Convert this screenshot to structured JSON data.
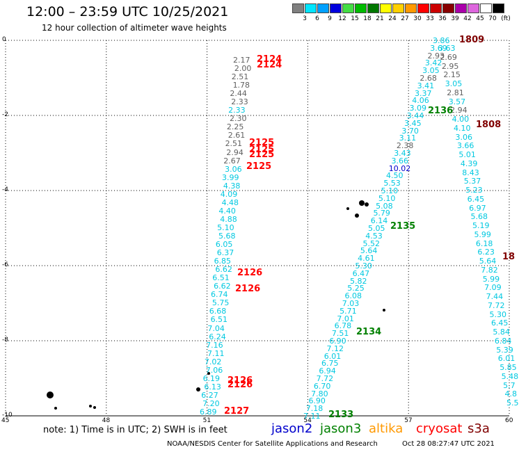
{
  "header": {
    "title": "12:00 – 23:59 UTC 10/25/2021",
    "subtitle": "12 hour collection of altimeter wave heights"
  },
  "color_scale": {
    "unit": "(ft)",
    "levels": [
      {
        "label": "3",
        "color": "#808080"
      },
      {
        "label": "6",
        "color": "#00e5ff"
      },
      {
        "label": "9",
        "color": "#00a0ff"
      },
      {
        "label": "12",
        "color": "#0000dd"
      },
      {
        "label": "15",
        "color": "#44dd44"
      },
      {
        "label": "18",
        "color": "#00bb00"
      },
      {
        "label": "21",
        "color": "#007700"
      },
      {
        "label": "24",
        "color": "#ffff00"
      },
      {
        "label": "27",
        "color": "#ffd000"
      },
      {
        "label": "30",
        "color": "#ff9900"
      },
      {
        "label": "33",
        "color": "#ff0000"
      },
      {
        "label": "36",
        "color": "#cc0000"
      },
      {
        "label": "39",
        "color": "#880000"
      },
      {
        "label": "42",
        "color": "#aa00aa"
      },
      {
        "label": "45",
        "color": "#dd66dd"
      },
      {
        "label": "70",
        "color": "#ffffff"
      },
      {
        "label": "",
        "color": "#000000"
      }
    ]
  },
  "axes": {
    "lat_labels": [
      "0",
      "-2",
      "-4",
      "-6",
      "-8",
      "-10"
    ],
    "lon_labels": [
      "45",
      "48",
      "51",
      "54",
      "57",
      "60"
    ]
  },
  "passes": [
    {
      "label": "2124",
      "color": "#ff0000"
    },
    {
      "label": "2124",
      "color": "#ff0000"
    },
    {
      "label": "2125",
      "color": "#ff0000"
    },
    {
      "label": "2125",
      "color": "#ff0000"
    },
    {
      "label": "2125",
      "color": "#ff0000"
    },
    {
      "label": "2125",
      "color": "#ff0000"
    },
    {
      "label": "2126",
      "color": "#ff0000"
    },
    {
      "label": "2126",
      "color": "#ff0000"
    },
    {
      "label": "2126",
      "color": "#ff0000"
    },
    {
      "label": "2126",
      "color": "#ff0000"
    },
    {
      "label": "2127",
      "color": "#ff0000"
    },
    {
      "label": "1809",
      "color": "#800000"
    },
    {
      "label": "1808",
      "color": "#800000"
    },
    {
      "label": "18",
      "color": "#800000"
    },
    {
      "label": "2136",
      "color": "#008000"
    },
    {
      "label": "2135",
      "color": "#008000"
    },
    {
      "label": "2134",
      "color": "#008000"
    },
    {
      "label": "2133",
      "color": "#008000"
    }
  ],
  "tracks": {
    "track_51": [
      {
        "v": "2.17",
        "c": "#606060"
      },
      {
        "v": "2.00",
        "c": "#606060"
      },
      {
        "v": "2.51",
        "c": "#606060"
      },
      {
        "v": "1.78",
        "c": "#606060"
      },
      {
        "v": "2.44",
        "c": "#606060"
      },
      {
        "v": "2.33",
        "c": "#606060"
      },
      {
        "v": "2.33",
        "c": "#00c8e0"
      },
      {
        "v": "2.30",
        "c": "#606060"
      },
      {
        "v": "2.25",
        "c": "#606060"
      },
      {
        "v": "2.61",
        "c": "#606060"
      },
      {
        "v": "2.51",
        "c": "#606060"
      },
      {
        "v": "2.94",
        "c": "#606060"
      },
      {
        "v": "2.67",
        "c": "#606060"
      },
      {
        "v": "3.06",
        "c": "#00c8e0"
      },
      {
        "v": "3.99",
        "c": "#00c8e0"
      },
      {
        "v": "4.38",
        "c": "#00c8e0"
      },
      {
        "v": "4.09",
        "c": "#00c8e0"
      },
      {
        "v": "4.48",
        "c": "#00c8e0"
      },
      {
        "v": "4.40",
        "c": "#00c8e0"
      },
      {
        "v": "4.88",
        "c": "#00c8e0"
      },
      {
        "v": "5.10",
        "c": "#00c8e0"
      },
      {
        "v": "5.68",
        "c": "#00c8e0"
      },
      {
        "v": "6.05",
        "c": "#00c8e0"
      },
      {
        "v": "6.37",
        "c": "#00c8e0"
      },
      {
        "v": "6.85",
        "c": "#00c8e0"
      },
      {
        "v": "6.62",
        "c": "#00c8e0"
      },
      {
        "v": "6.51",
        "c": "#00c8e0"
      },
      {
        "v": "6.62",
        "c": "#00c8e0"
      },
      {
        "v": "6.74",
        "c": "#00c8e0"
      },
      {
        "v": "5.75",
        "c": "#00c8e0"
      },
      {
        "v": "6.68",
        "c": "#00c8e0"
      },
      {
        "v": "6.51",
        "c": "#00c8e0"
      },
      {
        "v": "7.04",
        "c": "#00c8e0"
      },
      {
        "v": "6.24",
        "c": "#00c8e0"
      },
      {
        "v": "7.16",
        "c": "#00c8e0"
      },
      {
        "v": "7.11",
        "c": "#00c8e0"
      },
      {
        "v": "7.02",
        "c": "#00c8e0"
      },
      {
        "v": "7.06",
        "c": "#00c8e0"
      },
      {
        "v": "6.19",
        "c": "#00c8e0"
      },
      {
        "v": "6.13",
        "c": "#00c8e0"
      },
      {
        "v": "6.27",
        "c": "#00c8e0"
      },
      {
        "v": "7.20",
        "c": "#00c8e0"
      },
      {
        "v": "6.89",
        "c": "#00c8e0"
      }
    ],
    "track_2136": [
      {
        "v": "3.86",
        "c": "#00c8e0"
      },
      {
        "v": "3.69",
        "c": "#00c8e0"
      },
      {
        "v": "2.93",
        "c": "#606060"
      },
      {
        "v": "3.42",
        "c": "#00c8e0"
      },
      {
        "v": "3.05",
        "c": "#00c8e0"
      },
      {
        "v": "2.68",
        "c": "#606060"
      },
      {
        "v": "3.41",
        "c": "#00c8e0"
      },
      {
        "v": "3.37",
        "c": "#00c8e0"
      },
      {
        "v": "4.06",
        "c": "#00c8e0"
      },
      {
        "v": "3.09",
        "c": "#00c8e0"
      },
      {
        "v": "3.44",
        "c": "#00c8e0"
      },
      {
        "v": "3.45",
        "c": "#00c8e0"
      },
      {
        "v": "3.70",
        "c": "#00c8e0"
      },
      {
        "v": "3.11",
        "c": "#00c8e0"
      },
      {
        "v": "2.38",
        "c": "#606060"
      },
      {
        "v": "3.43",
        "c": "#00c8e0"
      },
      {
        "v": "3.66",
        "c": "#00c8e0"
      },
      {
        "v": "10.02",
        "c": "#0000cc"
      },
      {
        "v": "4.50",
        "c": "#00c8e0"
      },
      {
        "v": "5.53",
        "c": "#00c8e0"
      },
      {
        "v": "5.10",
        "c": "#00c8e0"
      },
      {
        "v": "5.10",
        "c": "#00c8e0"
      },
      {
        "v": "5.08",
        "c": "#00c8e0"
      },
      {
        "v": "5.79",
        "c": "#00c8e0"
      },
      {
        "v": "6.14",
        "c": "#00c8e0"
      },
      {
        "v": "5.05",
        "c": "#00c8e0"
      },
      {
        "v": "4.53",
        "c": "#00c8e0"
      },
      {
        "v": "5.52",
        "c": "#00c8e0"
      },
      {
        "v": "5.64",
        "c": "#00c8e0"
      },
      {
        "v": "4.61",
        "c": "#00c8e0"
      },
      {
        "v": "5.30",
        "c": "#00c8e0"
      },
      {
        "v": "6.47",
        "c": "#00c8e0"
      },
      {
        "v": "5.82",
        "c": "#00c8e0"
      },
      {
        "v": "5.25",
        "c": "#00c8e0"
      },
      {
        "v": "6.08",
        "c": "#00c8e0"
      },
      {
        "v": "7.03",
        "c": "#00c8e0"
      },
      {
        "v": "5.71",
        "c": "#00c8e0"
      },
      {
        "v": "7.01",
        "c": "#00c8e0"
      },
      {
        "v": "6.78",
        "c": "#00c8e0"
      },
      {
        "v": "7.51",
        "c": "#00c8e0"
      },
      {
        "v": "6.90",
        "c": "#00c8e0"
      },
      {
        "v": "7.12",
        "c": "#00c8e0"
      },
      {
        "v": "6.01",
        "c": "#00c8e0"
      },
      {
        "v": "6.75",
        "c": "#00c8e0"
      },
      {
        "v": "6.94",
        "c": "#00c8e0"
      },
      {
        "v": "7.72",
        "c": "#00c8e0"
      },
      {
        "v": "6.70",
        "c": "#00c8e0"
      },
      {
        "v": "7.80",
        "c": "#00c8e0"
      },
      {
        "v": "6.90",
        "c": "#00c8e0"
      },
      {
        "v": "7.18",
        "c": "#00c8e0"
      },
      {
        "v": "7.11",
        "c": "#00c8e0"
      }
    ],
    "track_1808": [
      {
        "v": "3.63",
        "c": "#00c8e0"
      },
      {
        "v": "2.69",
        "c": "#606060"
      },
      {
        "v": "2.95",
        "c": "#606060"
      },
      {
        "v": "2.15",
        "c": "#606060"
      },
      {
        "v": "3.05",
        "c": "#00c8e0"
      },
      {
        "v": "2.81",
        "c": "#606060"
      },
      {
        "v": "3.57",
        "c": "#00c8e0"
      },
      {
        "v": "2.94",
        "c": "#606060"
      },
      {
        "v": "4.00",
        "c": "#00c8e0"
      },
      {
        "v": "4.10",
        "c": "#00c8e0"
      },
      {
        "v": "3.06",
        "c": "#00c8e0"
      },
      {
        "v": "3.66",
        "c": "#00c8e0"
      },
      {
        "v": "5.01",
        "c": "#00c8e0"
      },
      {
        "v": "4.39",
        "c": "#00c8e0"
      },
      {
        "v": "8.43",
        "c": "#00c8e0"
      },
      {
        "v": "5.37",
        "c": "#00c8e0"
      },
      {
        "v": "5.23",
        "c": "#00c8e0"
      },
      {
        "v": "6.45",
        "c": "#00c8e0"
      },
      {
        "v": "6.97",
        "c": "#00c8e0"
      },
      {
        "v": "5.68",
        "c": "#00c8e0"
      },
      {
        "v": "5.19",
        "c": "#00c8e0"
      },
      {
        "v": "5.99",
        "c": "#00c8e0"
      },
      {
        "v": "6.18",
        "c": "#00c8e0"
      },
      {
        "v": "6.23",
        "c": "#00c8e0"
      },
      {
        "v": "5.64",
        "c": "#00c8e0"
      },
      {
        "v": "7.82",
        "c": "#00c8e0"
      },
      {
        "v": "5.99",
        "c": "#00c8e0"
      },
      {
        "v": "7.09",
        "c": "#00c8e0"
      },
      {
        "v": "7.44",
        "c": "#00c8e0"
      },
      {
        "v": "7.72",
        "c": "#00c8e0"
      },
      {
        "v": "5.30",
        "c": "#00c8e0"
      },
      {
        "v": "6.45",
        "c": "#00c8e0"
      },
      {
        "v": "5.84",
        "c": "#00c8e0"
      },
      {
        "v": "6.84",
        "c": "#00c8e0"
      },
      {
        "v": "5.39",
        "c": "#00c8e0"
      },
      {
        "v": "6.01",
        "c": "#00c8e0"
      },
      {
        "v": "5.85",
        "c": "#00c8e0"
      },
      {
        "v": "5.48",
        "c": "#00c8e0"
      },
      {
        "v": "5.7",
        "c": "#00c8e0"
      },
      {
        "v": "4.8",
        "c": "#00c8e0"
      },
      {
        "v": "5.5",
        "c": "#00c8e0"
      }
    ]
  },
  "footer": {
    "note": "note:  1) Time is in UTC; 2) SWH is in feet",
    "satellites": [
      {
        "name": "jason2",
        "color": "#0000cc"
      },
      {
        "name": "jason3",
        "color": "#008000"
      },
      {
        "name": "altika",
        "color": "#ff9900"
      },
      {
        "name": "cryosat",
        "color": "#ff0000"
      },
      {
        "name": "s3a",
        "color": "#800000"
      }
    ],
    "credit": "NOAA/NESDIS Center for Satellite Applications and Research",
    "timestamp": "Oct 28 08:27:47 UTC 2021"
  }
}
